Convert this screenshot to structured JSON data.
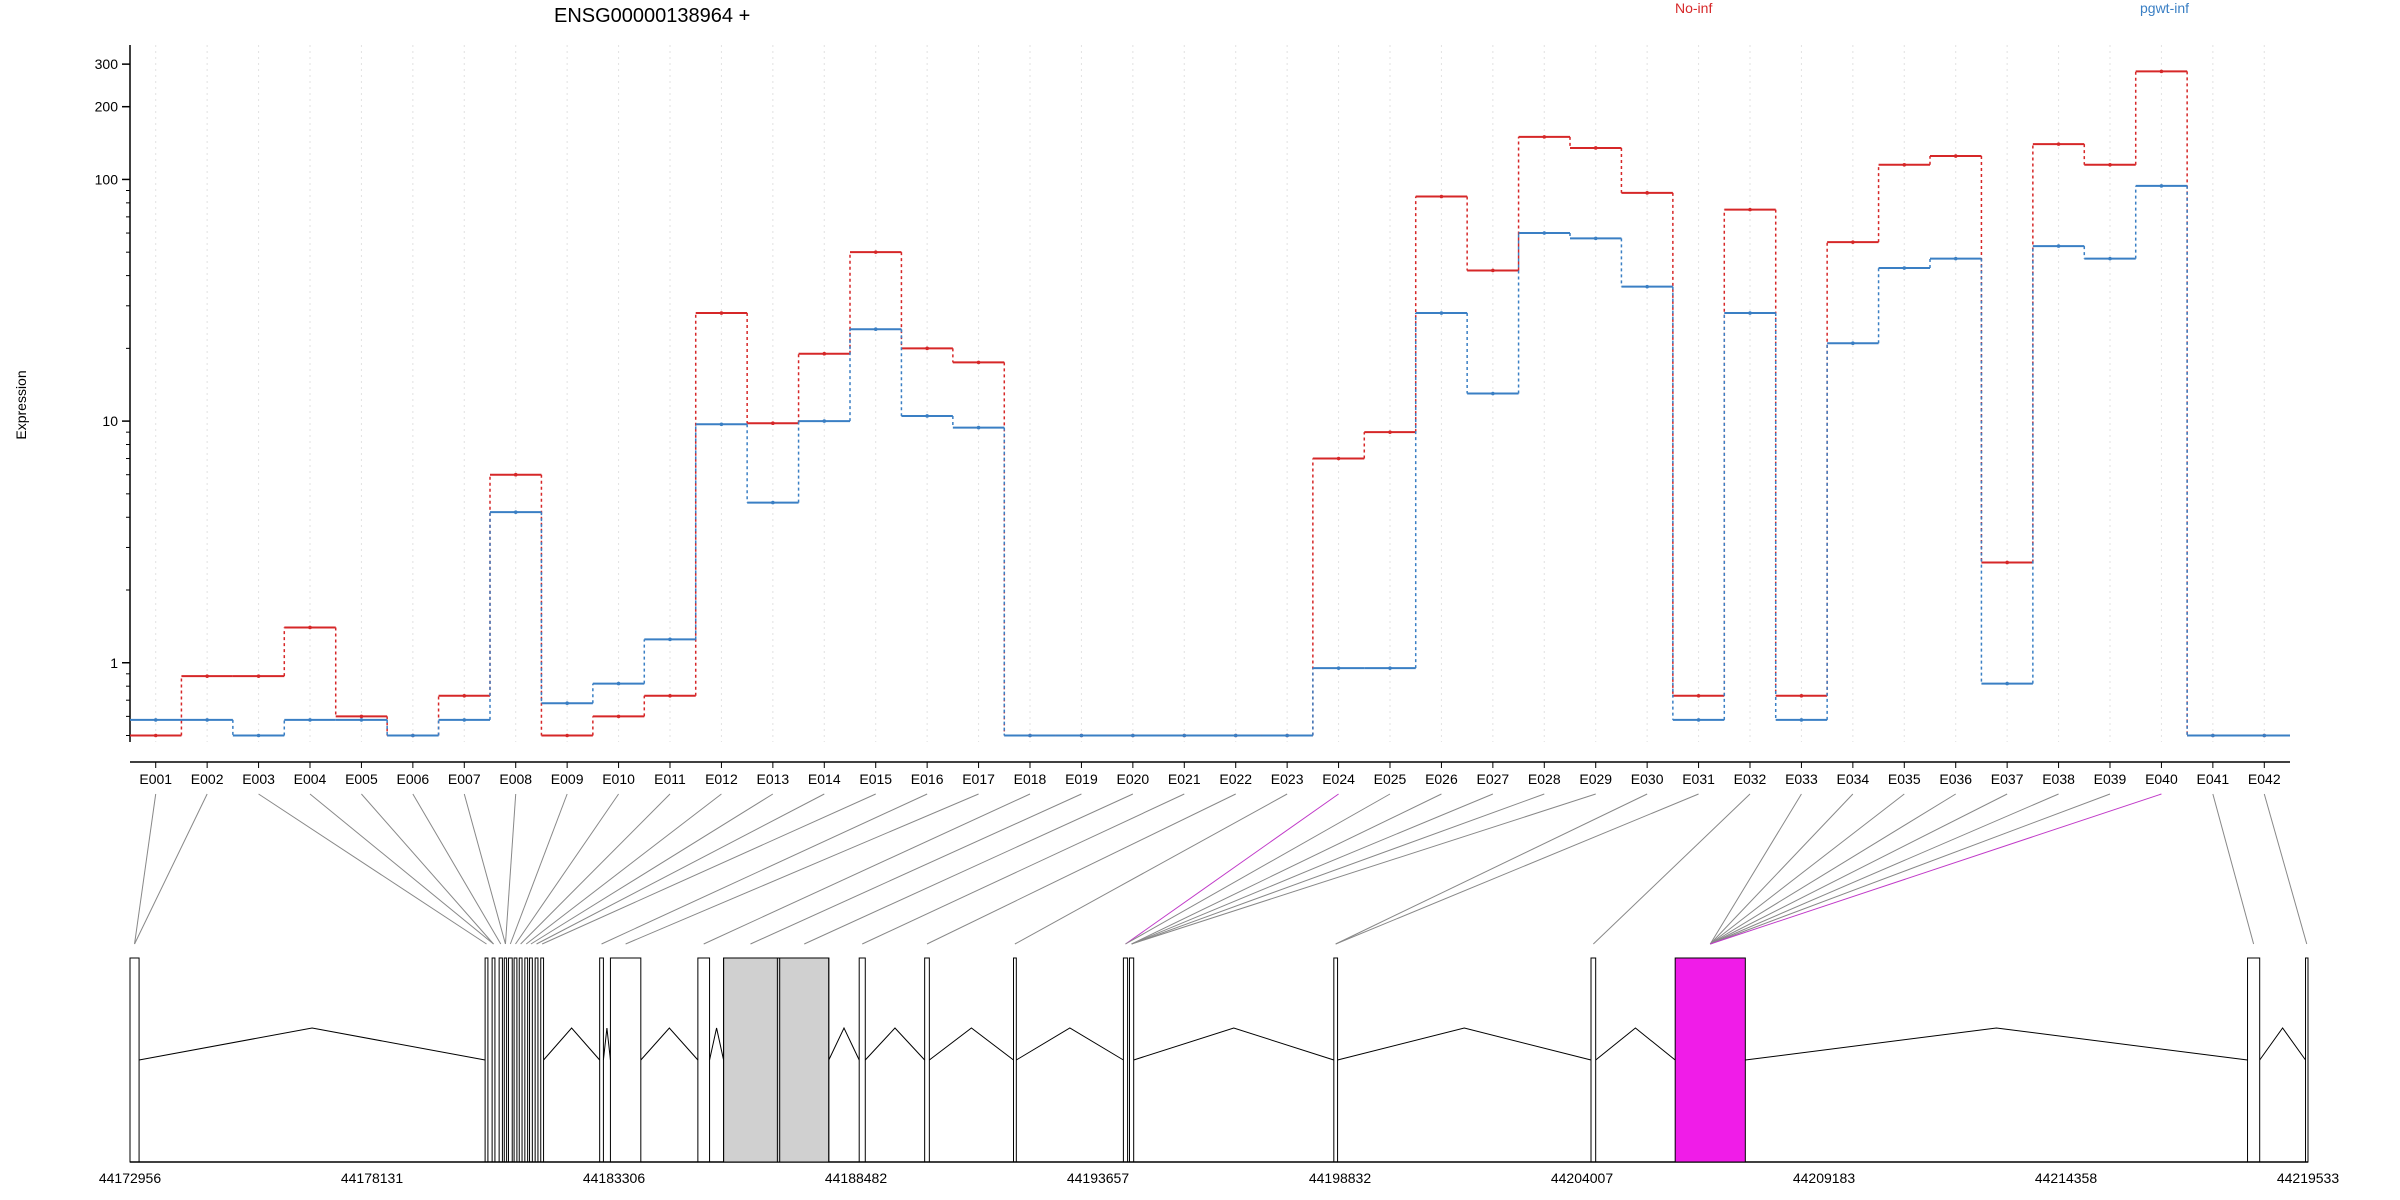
{
  "chart_data": {
    "type": "line",
    "title": "ENSG00000138964 +",
    "ylabel": "Expression",
    "xlabel": "",
    "yscale": "log",
    "ylim": [
      0.47,
      360
    ],
    "yticks": [
      1,
      10,
      100,
      200,
      300
    ],
    "ytick_labels": [
      "1",
      "10",
      "100",
      "200",
      "300"
    ],
    "grid": "vertical dotted lines at exon bin centers",
    "legend_position": "top-right",
    "categories": [
      "E001",
      "E002",
      "E003",
      "E004",
      "E005",
      "E006",
      "E007",
      "E008",
      "E009",
      "E010",
      "E011",
      "E012",
      "E013",
      "E014",
      "E015",
      "E016",
      "E017",
      "E018",
      "E019",
      "E020",
      "E021",
      "E022",
      "E023",
      "E024",
      "E025",
      "E026",
      "E027",
      "E028",
      "E029",
      "E030",
      "E031",
      "E032",
      "E033",
      "E034",
      "E035",
      "E036",
      "E037",
      "E038",
      "E039",
      "E040",
      "E041",
      "E042"
    ],
    "series": [
      {
        "name": "No-inf",
        "color": "#d62728",
        "values": [
          0.5,
          0.88,
          0.88,
          1.4,
          0.6,
          0.5,
          0.73,
          6.0,
          0.5,
          0.6,
          0.73,
          28,
          9.8,
          19,
          50,
          20,
          17.5,
          0.5,
          0.5,
          0.5,
          0.5,
          0.5,
          0.5,
          7.0,
          9.0,
          85,
          42,
          150,
          135,
          88,
          0.73,
          75,
          0.73,
          55,
          115,
          125,
          2.6,
          140,
          115,
          280,
          0.5,
          0.5
        ]
      },
      {
        "name": "pgwt-inf",
        "color": "#3a7fc4",
        "values": [
          0.58,
          0.58,
          0.5,
          0.58,
          0.58,
          0.5,
          0.58,
          4.2,
          0.68,
          0.82,
          1.25,
          9.7,
          4.6,
          10,
          24,
          10.5,
          9.4,
          0.5,
          0.5,
          0.5,
          0.5,
          0.5,
          0.5,
          0.95,
          0.95,
          28,
          13,
          60,
          57,
          36,
          0.58,
          28,
          0.58,
          21,
          43,
          47,
          0.82,
          53,
          47,
          94,
          0.5,
          0.5
        ]
      }
    ],
    "gene_model": {
      "genomic_range": [
        44172956,
        44219533
      ],
      "axis_tick_labels": [
        "44172956",
        "44178131",
        "44183306",
        "44188482",
        "44193657",
        "44198832",
        "44204007",
        "44209183",
        "44214358",
        "44219533"
      ],
      "highlight_color": "#f01ce8",
      "shaded_color": "#d0d0d0",
      "highlighted_exons": [
        "E024",
        "E040"
      ]
    }
  }
}
